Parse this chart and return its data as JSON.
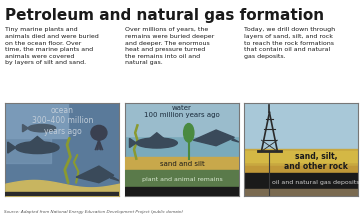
{
  "title": "Petroleum and natural gas formation",
  "title_fontsize": 11,
  "background_color": "#ffffff",
  "panels": [
    {
      "text": "Tiny marine plants and\nanimals died and were buried\non the ocean floor. Over\ntime, the marine plants and\nanimals were covered\nby layers of silt and sand.",
      "image_label": "ocean\n300–400 million\nyears ago",
      "water_color": "#5a7a9a",
      "light_water_color": "#7a9ab8",
      "sand_color": "#c8b560",
      "dark_bottom": "#2a2a2a",
      "creature_color": "#3a4a5a"
    },
    {
      "text": "Over millions of years, the\nremains were buried deeper\nand deeper. The enormous\nheat and pressure turned\nthe remains into oil and\nnatural gas.",
      "image_label": "water\n100 million years ago",
      "water_color": "#7aaabb",
      "sand_color": "#c8a84b",
      "plant_color": "#5a7a4a",
      "dark_bottom": "#2a2a2a",
      "creature_color": "#3a4a5a"
    },
    {
      "text": "Today, we drill down through\nlayers of sand, silt, and rock\nto reach the rock formations\nthat contain oil and natural\ngas deposits.",
      "image_label": "",
      "sky_color": "#a8c8d8",
      "sand_color": "#c8a840",
      "oil_color": "#1a1a1a",
      "brown_color": "#7a6a50",
      "derrick_color": "#2a2a2a"
    }
  ],
  "source_text": "Source: Adapted from National Energy Education Development Project (public domain)",
  "panel_border_color": "#777777",
  "text_color_dark": "#1a1a1a",
  "text_color_light": "#e8e8e8",
  "label_color_ocean": "#c0ccd8",
  "label_color_water": "#1a2a3a"
}
